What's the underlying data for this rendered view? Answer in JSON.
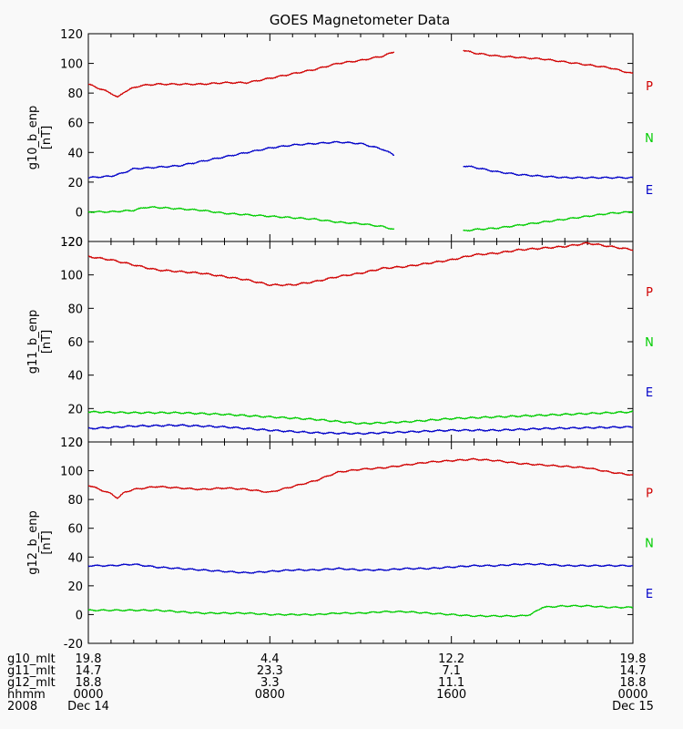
{
  "chart_data": {
    "type": "line",
    "title": "GOES Magnetometer Data",
    "xlim": [
      0,
      24
    ],
    "x_grid": false,
    "y_grid": false,
    "series_colors": {
      "P": "#d00000",
      "N": "#00cc00",
      "E": "#0000c8"
    },
    "legend_order": [
      "P",
      "N",
      "E"
    ],
    "panels": [
      {
        "ylabel": "g10_b_enp",
        "yunit": "[nT]",
        "ylim": [
          -20,
          120
        ],
        "yticks": [
          -20,
          0,
          20,
          40,
          60,
          80,
          100,
          120
        ],
        "gap": [
          13.5,
          16.5
        ],
        "series": [
          {
            "name": "P",
            "x": [
              0,
              0.5,
              1,
              1.3,
              1.6,
              1.9,
              2.3,
              3,
              4,
              5,
              6,
              7,
              8,
              9,
              10,
              11,
              12,
              13,
              13.5,
              16.5,
              17,
              18,
              19,
              20,
              21,
              22,
              23,
              24
            ],
            "values": [
              86,
              83,
              80,
              77,
              81,
              83,
              85,
              86,
              86,
              86,
              87,
              87,
              90,
              93,
              96,
              100,
              102,
              105,
              108,
              109,
              107,
              105,
              104,
              103,
              101,
              99,
              97,
              93
            ]
          },
          {
            "name": "N",
            "x": [
              0,
              1,
              2,
              2.5,
              3,
              4,
              5,
              6,
              7,
              8,
              9,
              10,
              11,
              12,
              13,
              13.5,
              16.5,
              17,
              18,
              19,
              20,
              21,
              22,
              23,
              24
            ],
            "values": [
              0,
              0,
              1,
              3,
              3,
              2,
              1,
              -1,
              -2,
              -3,
              -4,
              -5,
              -7,
              -8,
              -10,
              -12,
              -13,
              -12,
              -11,
              -9,
              -7,
              -5,
              -3,
              -1,
              0
            ]
          },
          {
            "name": "E",
            "x": [
              0,
              1,
              1.5,
              2,
              3,
              4,
              5,
              6,
              7,
              8,
              9,
              10,
              11,
              12,
              13,
              13.5,
              16.5,
              17,
              18,
              19,
              20,
              21,
              22,
              23,
              24
            ],
            "values": [
              23,
              24,
              26,
              29,
              30,
              31,
              34,
              37,
              40,
              43,
              45,
              46,
              47,
              46,
              42,
              38,
              31,
              30,
              27,
              25,
              24,
              23,
              23,
              23,
              23
            ]
          }
        ]
      },
      {
        "ylabel": "g11_b_enp",
        "yunit": "[nT]",
        "ylim": [
          0,
          120
        ],
        "yticks": [
          0,
          20,
          40,
          60,
          80,
          100,
          120
        ],
        "series": [
          {
            "name": "P",
            "x": [
              0,
              1,
              2,
              3,
              4,
              5,
              6,
              7,
              8,
              9,
              10,
              11,
              12,
              13,
              14,
              15,
              16,
              17,
              18,
              19,
              20,
              21,
              22,
              23,
              24
            ],
            "values": [
              111,
              109,
              106,
              103,
              102,
              101,
              99,
              97,
              94,
              94,
              96,
              99,
              101,
              104,
              105,
              107,
              109,
              112,
              113,
              115,
              116,
              117,
              119,
              117,
              115
            ]
          },
          {
            "name": "N",
            "x": [
              0,
              2,
              4,
              6,
              8,
              10,
              12,
              14,
              16,
              18,
              20,
              22,
              24
            ],
            "values": [
              18,
              17.5,
              17.5,
              16.5,
              15,
              13.5,
              11,
              12,
              14,
              15,
              16,
              17,
              18
            ]
          },
          {
            "name": "E",
            "x": [
              0,
              2,
              4,
              6,
              8,
              10,
              12,
              14,
              16,
              18,
              20,
              22,
              24
            ],
            "values": [
              8,
              9.5,
              10,
              9,
              7,
              5.5,
              5,
              6,
              7,
              7,
              8,
              8.5,
              9
            ]
          }
        ]
      },
      {
        "ylabel": "g12_b_enp",
        "yunit": "[nT]",
        "ylim": [
          -20,
          120
        ],
        "yticks": [
          -20,
          0,
          20,
          40,
          60,
          80,
          100,
          120
        ],
        "series": [
          {
            "name": "P",
            "x": [
              0,
              0.5,
              1,
              1.3,
              1.6,
              2,
              3,
              4,
              5,
              6,
              7,
              8,
              9,
              10,
              11,
              12,
              13,
              14,
              15,
              16,
              17,
              18,
              19,
              20,
              21,
              22,
              23,
              24
            ],
            "values": [
              90,
              87,
              84,
              81,
              85,
              87,
              89,
              88,
              87,
              88,
              87,
              85,
              89,
              93,
              99,
              101,
              102,
              104,
              106,
              107,
              108,
              107,
              105,
              104,
              103,
              102,
              99,
              97
            ]
          },
          {
            "name": "N",
            "x": [
              0,
              1,
              2,
              3,
              4,
              5,
              6,
              7,
              8,
              9,
              10,
              11,
              12,
              13,
              14,
              15,
              16,
              17,
              18,
              19,
              19.5,
              20,
              21,
              22,
              23,
              24
            ],
            "values": [
              3,
              3,
              3,
              3,
              2,
              1,
              1,
              1,
              0,
              0,
              0,
              1,
              1,
              2,
              2,
              1,
              0,
              -1,
              -1,
              -1,
              0,
              5,
              6,
              6,
              5,
              5
            ]
          },
          {
            "name": "E",
            "x": [
              0,
              1,
              2,
              3,
              4,
              5,
              6,
              7,
              8,
              9,
              10,
              11,
              12,
              13,
              14,
              15,
              16,
              17,
              18,
              19,
              20,
              21,
              22,
              23,
              24
            ],
            "values": [
              34,
              34,
              35,
              33,
              32,
              31,
              30,
              29,
              30,
              31,
              31,
              32,
              31,
              31,
              32,
              32,
              33,
              34,
              34,
              35,
              35,
              34,
              34,
              34,
              34
            ]
          }
        ]
      }
    ],
    "x_ticks_hours": [
      0,
      8,
      16,
      24
    ]
  },
  "footer": {
    "row_labels": [
      "g10_mlt",
      "g11_mlt",
      "g12_mlt",
      "hhmm",
      "2008"
    ],
    "columns": [
      {
        "values": [
          "19.8",
          "14.7",
          "18.8",
          "0000",
          "Dec 14"
        ]
      },
      {
        "values": [
          "4.4",
          "23.3",
          "3.3",
          "0800",
          ""
        ]
      },
      {
        "values": [
          "12.2",
          "7.1",
          "11.1",
          "1600",
          ""
        ]
      },
      {
        "values": [
          "19.8",
          "14.7",
          "18.8",
          "0000",
          "Dec 15"
        ]
      }
    ]
  }
}
